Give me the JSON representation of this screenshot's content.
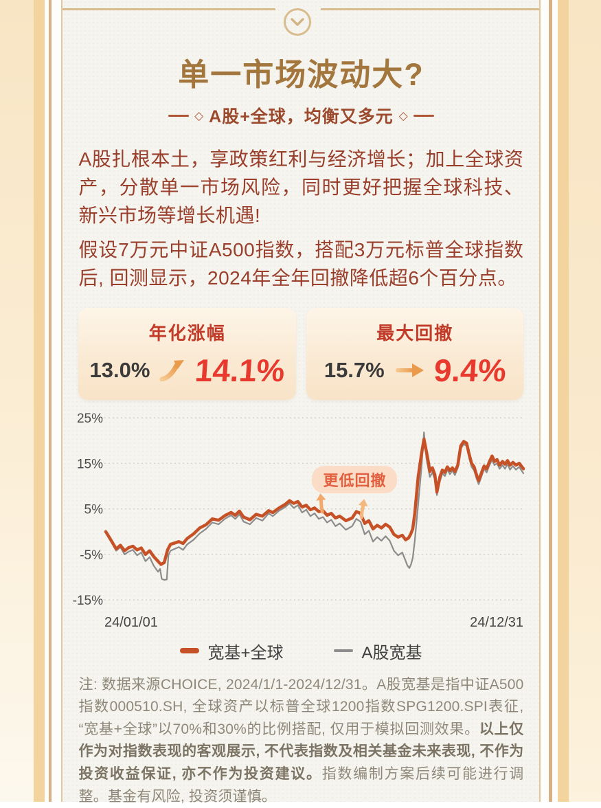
{
  "header": {
    "title": "单一市场波动大?",
    "subtitle": "A股+全球，均衡又多元",
    "ornament": "◇"
  },
  "paragraphs": {
    "p1": "A股扎根本土，享政策红利与经济增长；加上全球资产，分散单一市场风险，同时更好把握全球科技、新兴市场等增长机遇!",
    "p2": "假设7万元中证A500指数，搭配3万元标普全球指数后, 回测显示，2024年全年回撤降低超6个百分点。"
  },
  "stat_cards": [
    {
      "title": "年化涨幅",
      "before": "13.0%",
      "after": "14.1%",
      "arrow": "up-right-curved"
    },
    {
      "title": "最大回撤",
      "before": "15.7%",
      "after": "9.4%",
      "arrow": "right"
    }
  ],
  "chart_data": {
    "type": "line",
    "x_axis": {
      "start_label": "24/01/01",
      "end_label": "24/12/31"
    },
    "y_ticks": [
      {
        "value": 25,
        "label": "25%"
      },
      {
        "value": 15,
        "label": "15%"
      },
      {
        "value": 5,
        "label": "5%"
      },
      {
        "value": -5,
        "label": "-5%"
      },
      {
        "value": -15,
        "label": "-15%"
      }
    ],
    "ylim": [
      -17,
      26
    ],
    "grid": "dotted-horizontal",
    "annotation": "更低回撤",
    "legend_position": "bottom-center",
    "series": [
      {
        "name": "宽基+全球",
        "color": "#c65127",
        "stroke_width": 4.5,
        "points": [
          [
            0,
            0
          ],
          [
            0.01,
            -1.5
          ],
          [
            0.025,
            -3.8
          ],
          [
            0.035,
            -3
          ],
          [
            0.045,
            -4.2
          ],
          [
            0.055,
            -3.5
          ],
          [
            0.065,
            -3.2
          ],
          [
            0.075,
            -4
          ],
          [
            0.085,
            -3.6
          ],
          [
            0.095,
            -5
          ],
          [
            0.105,
            -4.2
          ],
          [
            0.115,
            -5.5
          ],
          [
            0.125,
            -6.5
          ],
          [
            0.132,
            -7.2
          ],
          [
            0.14,
            -6.8
          ],
          [
            0.148,
            -4
          ],
          [
            0.155,
            -2.8
          ],
          [
            0.165,
            -2.5
          ],
          [
            0.175,
            -2.2
          ],
          [
            0.185,
            -2.6
          ],
          [
            0.195,
            -1.5
          ],
          [
            0.21,
            -0.5
          ],
          [
            0.225,
            0.8
          ],
          [
            0.24,
            1.5
          ],
          [
            0.255,
            2.8
          ],
          [
            0.27,
            2.5
          ],
          [
            0.285,
            3.5
          ],
          [
            0.3,
            4.2
          ],
          [
            0.31,
            3.6
          ],
          [
            0.32,
            4.5
          ],
          [
            0.33,
            3.2
          ],
          [
            0.345,
            2.6
          ],
          [
            0.36,
            3.8
          ],
          [
            0.375,
            3.4
          ],
          [
            0.39,
            4.6
          ],
          [
            0.4,
            4.2
          ],
          [
            0.415,
            5.2
          ],
          [
            0.43,
            6
          ],
          [
            0.44,
            6.8
          ],
          [
            0.45,
            6.2
          ],
          [
            0.46,
            6.6
          ],
          [
            0.47,
            5.4
          ],
          [
            0.48,
            5.8
          ],
          [
            0.49,
            4.8
          ],
          [
            0.5,
            5.2
          ],
          [
            0.51,
            4.4
          ],
          [
            0.52,
            4.6
          ],
          [
            0.53,
            3.6
          ],
          [
            0.54,
            4
          ],
          [
            0.55,
            3
          ],
          [
            0.56,
            3.4
          ],
          [
            0.575,
            2.4
          ],
          [
            0.59,
            3
          ],
          [
            0.6,
            4.4
          ],
          [
            0.61,
            4
          ],
          [
            0.62,
            1.8
          ],
          [
            0.63,
            2.4
          ],
          [
            0.64,
            0.6
          ],
          [
            0.65,
            1.4
          ],
          [
            0.66,
            0.8
          ],
          [
            0.67,
            1.6
          ],
          [
            0.68,
            1
          ],
          [
            0.69,
            -0.6
          ],
          [
            0.7,
            -1.2
          ],
          [
            0.71,
            -0.8
          ],
          [
            0.718,
            -1.8
          ],
          [
            0.725,
            -1.4
          ],
          [
            0.73,
            -0.6
          ],
          [
            0.735,
            0.6
          ],
          [
            0.74,
            4
          ],
          [
            0.748,
            12
          ],
          [
            0.756,
            17
          ],
          [
            0.762,
            20.3
          ],
          [
            0.768,
            17.5
          ],
          [
            0.772,
            15.5
          ],
          [
            0.776,
            13.2
          ],
          [
            0.782,
            14
          ],
          [
            0.788,
            12.5
          ],
          [
            0.793,
            8.7
          ],
          [
            0.8,
            12
          ],
          [
            0.806,
            13.5
          ],
          [
            0.812,
            13
          ],
          [
            0.818,
            14.2
          ],
          [
            0.824,
            13.4
          ],
          [
            0.83,
            14
          ],
          [
            0.836,
            13.2
          ],
          [
            0.843,
            14.6
          ],
          [
            0.85,
            18.8
          ],
          [
            0.857,
            19.8
          ],
          [
            0.864,
            19.4
          ],
          [
            0.87,
            17
          ],
          [
            0.876,
            15
          ],
          [
            0.882,
            14.2
          ],
          [
            0.888,
            12.4
          ],
          [
            0.893,
            11.2
          ],
          [
            0.9,
            13
          ],
          [
            0.906,
            14.4
          ],
          [
            0.912,
            13.8
          ],
          [
            0.918,
            15.2
          ],
          [
            0.925,
            16.6
          ],
          [
            0.931,
            15.4
          ],
          [
            0.937,
            15.8
          ],
          [
            0.943,
            14.6
          ],
          [
            0.95,
            15.4
          ],
          [
            0.956,
            14.8
          ],
          [
            0.962,
            15.6
          ],
          [
            0.968,
            14.6
          ],
          [
            0.975,
            15.2
          ],
          [
            0.982,
            14.6
          ],
          [
            0.99,
            15
          ],
          [
            1,
            13.8
          ]
        ]
      },
      {
        "name": "A股宽基",
        "color": "#8c8c8c",
        "stroke_width": 2.2,
        "points": [
          [
            0,
            0
          ],
          [
            0.01,
            -1.8
          ],
          [
            0.025,
            -4.2
          ],
          [
            0.035,
            -3.4
          ],
          [
            0.045,
            -5
          ],
          [
            0.055,
            -4.4
          ],
          [
            0.065,
            -4
          ],
          [
            0.075,
            -5.2
          ],
          [
            0.085,
            -4.6
          ],
          [
            0.095,
            -6.5
          ],
          [
            0.105,
            -5.6
          ],
          [
            0.115,
            -7.5
          ],
          [
            0.125,
            -8.8
          ],
          [
            0.13,
            -8.2
          ],
          [
            0.134,
            -10.4
          ],
          [
            0.14,
            -10.6
          ],
          [
            0.146,
            -10.5
          ],
          [
            0.15,
            -5.2
          ],
          [
            0.155,
            -4.2
          ],
          [
            0.165,
            -3.8
          ],
          [
            0.175,
            -3.4
          ],
          [
            0.185,
            -4
          ],
          [
            0.195,
            -2.8
          ],
          [
            0.21,
            -1.8
          ],
          [
            0.225,
            -0.4
          ],
          [
            0.24,
            0.6
          ],
          [
            0.255,
            2
          ],
          [
            0.27,
            1.6
          ],
          [
            0.285,
            2.8
          ],
          [
            0.3,
            3.6
          ],
          [
            0.31,
            2.8
          ],
          [
            0.32,
            3.8
          ],
          [
            0.33,
            2.2
          ],
          [
            0.345,
            1.6
          ],
          [
            0.36,
            3
          ],
          [
            0.375,
            2.4
          ],
          [
            0.39,
            4
          ],
          [
            0.4,
            3.4
          ],
          [
            0.415,
            4.6
          ],
          [
            0.43,
            5.4
          ],
          [
            0.44,
            6.2
          ],
          [
            0.45,
            5.2
          ],
          [
            0.46,
            5.8
          ],
          [
            0.47,
            4.2
          ],
          [
            0.48,
            4.8
          ],
          [
            0.49,
            3.4
          ],
          [
            0.5,
            4
          ],
          [
            0.51,
            2.8
          ],
          [
            0.52,
            3.2
          ],
          [
            0.53,
            2
          ],
          [
            0.54,
            2.6
          ],
          [
            0.55,
            1.2
          ],
          [
            0.56,
            1.8
          ],
          [
            0.575,
            0.4
          ],
          [
            0.59,
            1.2
          ],
          [
            0.6,
            2.8
          ],
          [
            0.61,
            2.2
          ],
          [
            0.62,
            -0.6
          ],
          [
            0.63,
            0.2
          ],
          [
            0.64,
            -2.2
          ],
          [
            0.65,
            -1.2
          ],
          [
            0.66,
            -2
          ],
          [
            0.67,
            -1
          ],
          [
            0.68,
            -2
          ],
          [
            0.69,
            -4.2
          ],
          [
            0.7,
            -5.2
          ],
          [
            0.71,
            -4.6
          ],
          [
            0.718,
            -6.4
          ],
          [
            0.722,
            -7.4
          ],
          [
            0.727,
            -8
          ],
          [
            0.731,
            -7.2
          ],
          [
            0.735,
            -5.8
          ],
          [
            0.74,
            -2
          ],
          [
            0.748,
            6
          ],
          [
            0.756,
            14
          ],
          [
            0.762,
            21.8
          ],
          [
            0.768,
            16
          ],
          [
            0.772,
            14
          ],
          [
            0.776,
            12
          ],
          [
            0.782,
            13
          ],
          [
            0.788,
            11.5
          ],
          [
            0.793,
            8
          ],
          [
            0.8,
            11
          ],
          [
            0.806,
            12.8
          ],
          [
            0.812,
            12.2
          ],
          [
            0.818,
            13.6
          ],
          [
            0.824,
            12.6
          ],
          [
            0.83,
            13.4
          ],
          [
            0.836,
            12.4
          ],
          [
            0.843,
            14
          ],
          [
            0.85,
            18.2
          ],
          [
            0.857,
            19.2
          ],
          [
            0.864,
            18.8
          ],
          [
            0.87,
            16.2
          ],
          [
            0.876,
            14.2
          ],
          [
            0.882,
            13.4
          ],
          [
            0.888,
            11.6
          ],
          [
            0.893,
            10.4
          ],
          [
            0.9,
            12.2
          ],
          [
            0.906,
            13.8
          ],
          [
            0.912,
            13
          ],
          [
            0.918,
            14.4
          ],
          [
            0.925,
            15.8
          ],
          [
            0.931,
            14.6
          ],
          [
            0.937,
            15
          ],
          [
            0.943,
            13.8
          ],
          [
            0.95,
            14.6
          ],
          [
            0.956,
            13.8
          ],
          [
            0.962,
            14.8
          ],
          [
            0.968,
            13.6
          ],
          [
            0.975,
            14.4
          ],
          [
            0.982,
            13.6
          ],
          [
            0.99,
            14.2
          ],
          [
            1,
            12.8
          ]
        ]
      }
    ]
  },
  "legend": [
    {
      "label": "宽基+全球"
    },
    {
      "label": "A股宽基"
    }
  ],
  "footnote": {
    "normal_1": "注: 数据来源CHOICE, 2024/1/1-2024/12/31。A股宽基是指中证A500指数000510.SH, 全球资产以标普全球1200指数SPG1200.SPI表征, “宽基+全球”以70%和30%的比例搭配, 仅用于模拟回测效果。",
    "bold": "以上仅作为对指数表现的客观展示, 不代表指数及相关基金未来表现, 不作为投资收益保证, 亦不作为投资建议。",
    "normal_2": "指数编制方案后续可能进行调整。基金有风险, 投资须谨慎。"
  },
  "colors": {
    "title_gold": "#a3763d",
    "subtitle_brown": "#9c4a2e",
    "body_red": "#9a3f2c",
    "card_title_red": "#c23a28",
    "value_old_gray": "#3b3b3b",
    "value_new_red": "#e8392e",
    "arrow_orange": "#eda05a",
    "series_blend_orange": "#c65127",
    "series_a_share_gray": "#8c8c8c",
    "annotation_text": "#e2603f",
    "annotation_bg": "#fbdcc7",
    "frame_gold": "#d9bc8e",
    "side_band_tan": "#f3d49e",
    "paper": "#f5f4ef",
    "footnote_gray": "#8f887a"
  }
}
